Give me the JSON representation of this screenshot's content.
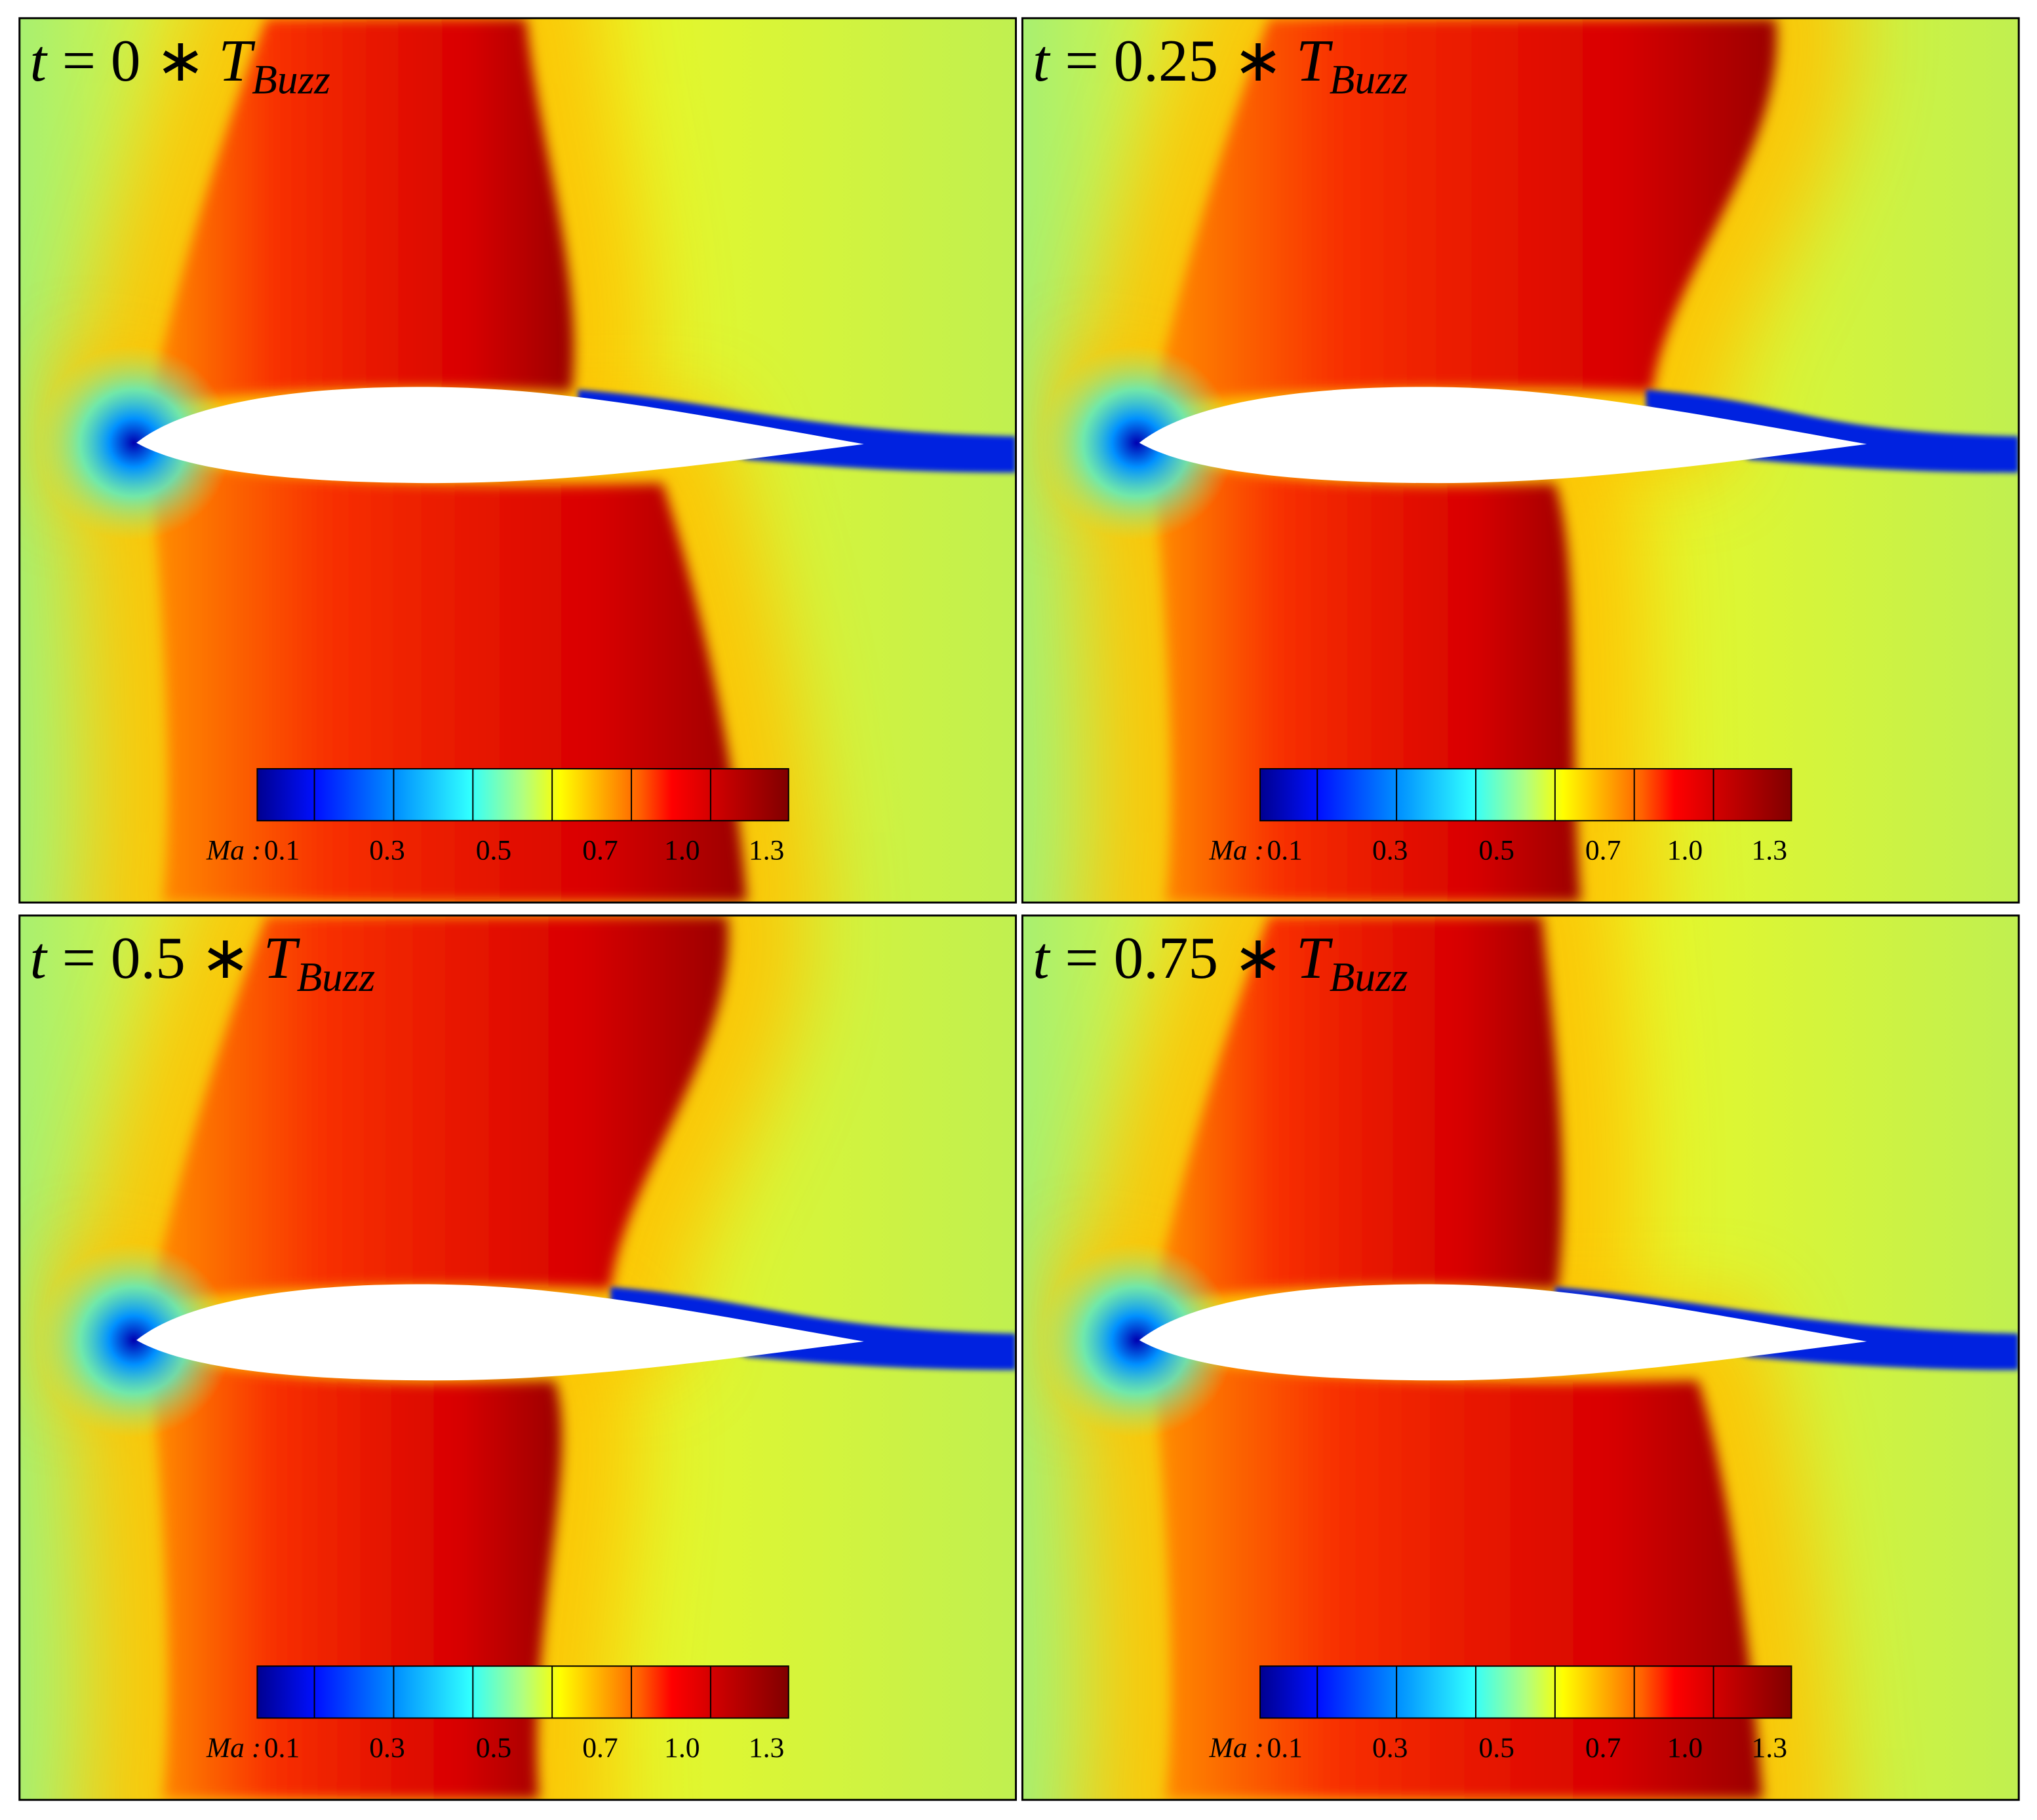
{
  "panels": [
    {
      "title": {
        "variable": "t",
        "expression": "= 0 ∗",
        "symbol": "T",
        "subscript": "Buzz"
      }
    },
    {
      "title": {
        "variable": "t",
        "expression": "= 0.25 ∗",
        "symbol": "T",
        "subscript": "Buzz"
      }
    },
    {
      "title": {
        "variable": "t",
        "expression": "= 0.5 ∗",
        "symbol": "T",
        "subscript": "Buzz"
      }
    },
    {
      "title": {
        "variable": "t",
        "expression": "= 0.75 ∗",
        "symbol": "T",
        "subscript": "Buzz"
      }
    }
  ],
  "colorbar": {
    "label": "Ma :",
    "ticks": [
      "0.1",
      "0.3",
      "0.5",
      "0.7",
      "1.0",
      "1.3"
    ]
  }
}
